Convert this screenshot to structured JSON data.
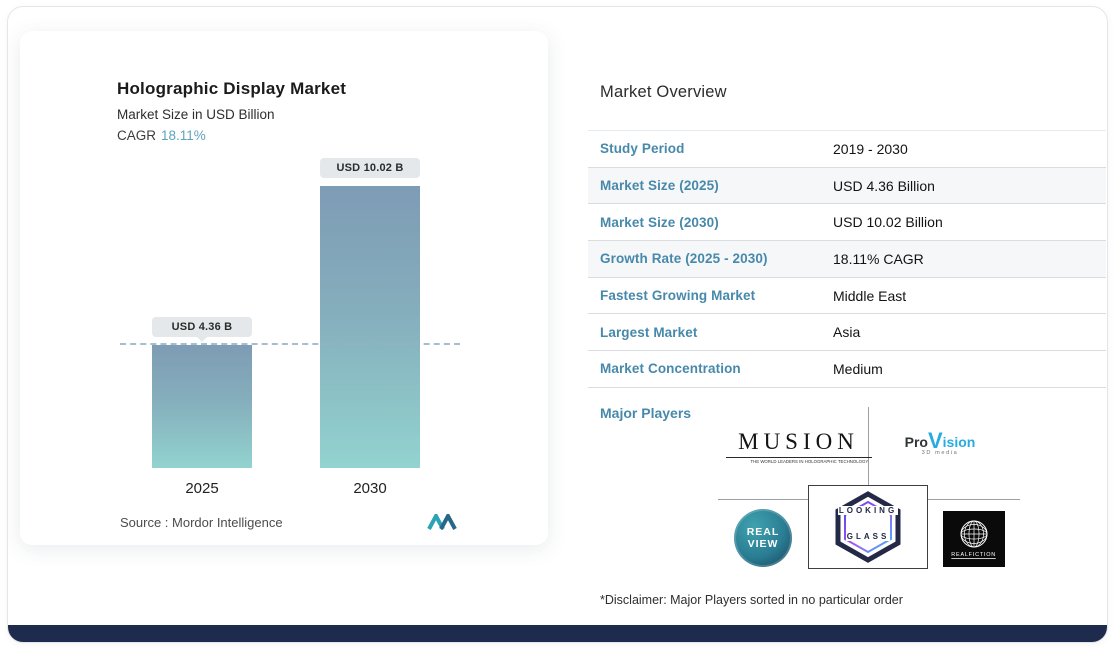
{
  "accent_color": "#4789ab",
  "chart_panel": {
    "title": "Holographic Display Market",
    "subtitle": "Market Size in USD Billion",
    "cagr_label": "CAGR",
    "cagr_value": "18.11%",
    "source_text": "Source :  Mordor Intelligence"
  },
  "chart_data": {
    "type": "bar",
    "title": "Holographic Display Market",
    "ylabel": "Market Size in USD Billion",
    "categories": [
      "2025",
      "2030"
    ],
    "values": [
      4.36,
      10.02
    ],
    "bar_labels": [
      "USD 4.36 B",
      "USD 10.02 B"
    ],
    "ylim": [
      0,
      11
    ],
    "reference_line": 4.36,
    "cagr": "18.11%",
    "bar_color_top": "#7e9cb5",
    "bar_color_bottom": "#92d3cf",
    "grid": false,
    "legend": "none"
  },
  "overview": {
    "title": "Market Overview",
    "rows": [
      {
        "label": "Study Period",
        "value": "2019 - 2030"
      },
      {
        "label": "Market Size (2025)",
        "value": "USD 4.36 Billion"
      },
      {
        "label": "Market Size (2030)",
        "value": "USD 10.02 Billion"
      },
      {
        "label": "Growth Rate (2025 - 2030)",
        "value": "18.11% CAGR"
      },
      {
        "label": "Fastest Growing Market",
        "value": "Middle East"
      },
      {
        "label": "Largest Market",
        "value": "Asia"
      },
      {
        "label": "Market Concentration",
        "value": "Medium"
      }
    ],
    "major_players_label": "Major Players",
    "disclaimer": "*Disclaimer: Major Players sorted in no particular order"
  },
  "logos": {
    "musion": {
      "name": "MUSION",
      "tagline": "THE WORLD LEADERS IN HOLOGRAPHIC TECHNOLOGY"
    },
    "provision": {
      "pro": "Pro",
      "v": "V",
      "ision": "ision",
      "sub": "3D media"
    },
    "realview": {
      "line1": "REAL",
      "line2": "VIEW"
    },
    "lookingglass": {
      "word1": "LOOKING",
      "word2": "GLASS"
    },
    "realfiction": {
      "name": "REALFICTION"
    }
  }
}
